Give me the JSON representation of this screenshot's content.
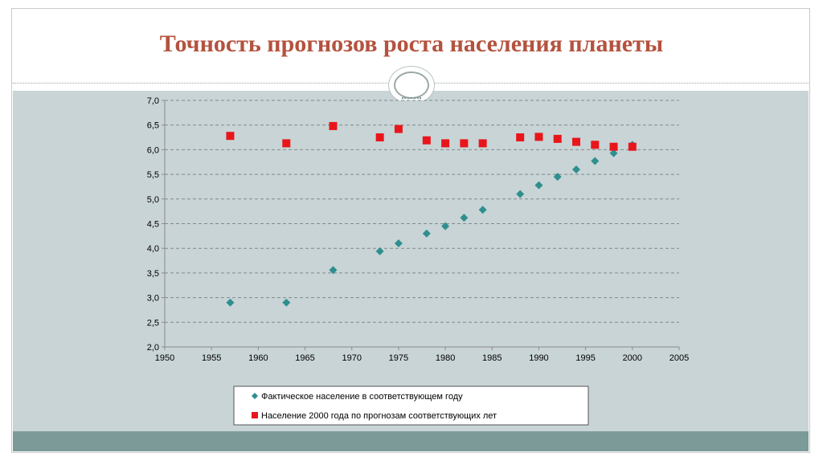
{
  "slide": {
    "title": "Точность прогнозов роста населения планеты"
  },
  "colors": {
    "title": "#b4523e",
    "chart_background": "#c9d4d6",
    "footer_band": "#7c9b98",
    "actual_series": "#2f8f8f",
    "forecast_series": "#e8161b"
  },
  "chart_data": {
    "type": "scatter",
    "title": "",
    "xlabel": "",
    "ylabel": "",
    "xlim": [
      1950,
      2005
    ],
    "ylim": [
      2.0,
      7.0
    ],
    "x_ticks": [
      "1950",
      "1955",
      "1960",
      "1965",
      "1970",
      "1975",
      "1980",
      "1985",
      "1990",
      "1995",
      "2000",
      "2005"
    ],
    "y_ticks": [
      "2,0",
      "2,5",
      "3,0",
      "3,5",
      "4,0",
      "4,5",
      "5,0",
      "5,5",
      "6,0",
      "6,5",
      "7,0"
    ],
    "grid": "horizontal dashed",
    "legend_position": "bottom",
    "series": [
      {
        "name": "Фактическое население в соответствующем году",
        "marker": "diamond",
        "points": [
          [
            1957,
            2.9
          ],
          [
            1963,
            2.9
          ],
          [
            1968,
            3.56
          ],
          [
            1973,
            3.94
          ],
          [
            1975,
            4.1
          ],
          [
            1978,
            4.3
          ],
          [
            1980,
            4.45
          ],
          [
            1982,
            4.62
          ],
          [
            1984,
            4.78
          ],
          [
            1988,
            5.1
          ],
          [
            1990,
            5.28
          ],
          [
            1992,
            5.45
          ],
          [
            1994,
            5.6
          ],
          [
            1996,
            5.77
          ],
          [
            1998,
            5.93
          ],
          [
            2000,
            6.1
          ]
        ]
      },
      {
        "name": "Население 2000 года по прогнозам соответствующих лет",
        "marker": "square",
        "points": [
          [
            1957,
            6.28
          ],
          [
            1963,
            6.13
          ],
          [
            1968,
            6.48
          ],
          [
            1973,
            6.25
          ],
          [
            1975,
            6.42
          ],
          [
            1978,
            6.19
          ],
          [
            1980,
            6.13
          ],
          [
            1982,
            6.13
          ],
          [
            1984,
            6.13
          ],
          [
            1988,
            6.25
          ],
          [
            1990,
            6.26
          ],
          [
            1992,
            6.22
          ],
          [
            1994,
            6.16
          ],
          [
            1996,
            6.1
          ],
          [
            1998,
            6.06
          ],
          [
            2000,
            6.06
          ]
        ]
      }
    ]
  }
}
